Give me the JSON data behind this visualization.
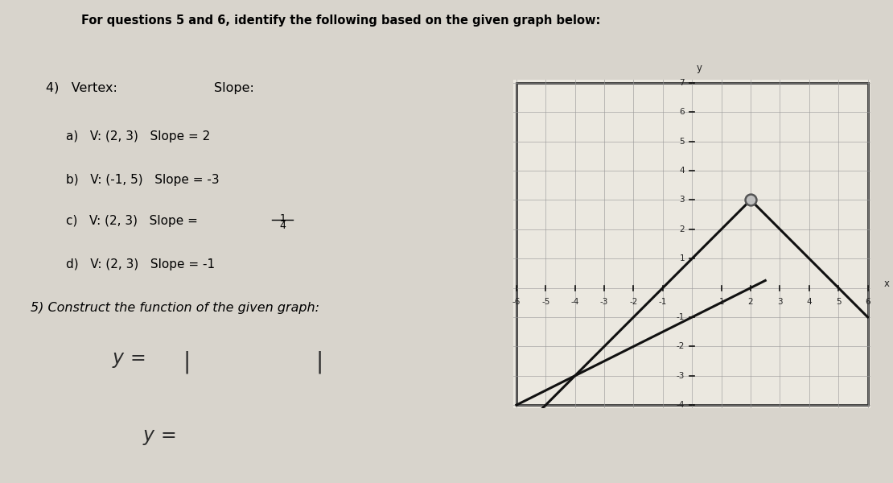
{
  "title_line1": "For questions 5 and 6, identify the following based on the given graph below:",
  "q4_label": "4)   Vertex:",
  "slope_header": "Slope:",
  "opt_a": "a)   V: (2, 3)   Slope = 2",
  "opt_b": "b)   V: (-1, 5)   Slope = -3",
  "opt_c_pre": "c)   V: (2, 3)   Slope = ",
  "opt_d": "d)   V: (2, 3)   Slope = -1",
  "q5_label": "5) Construct the function of the given graph:",
  "bg_color": "#d8d4cc",
  "paper_color": "#e8e5de",
  "graph_bg": "#ebe8e0",
  "graph_border": "#333333",
  "axis_color": "#111111",
  "grid_color": "#999999",
  "line_color": "#111111",
  "vertex_marker_color": "#888888",
  "xlim": [
    -6,
    6
  ],
  "ylim": [
    -4,
    7
  ],
  "vertex": [
    2,
    3
  ],
  "abs_x_left": -1,
  "abs_x_right_end": 6,
  "line2_x1": -6,
  "line2_y1": -4,
  "line2_x2": 2,
  "line2_y2": 0
}
